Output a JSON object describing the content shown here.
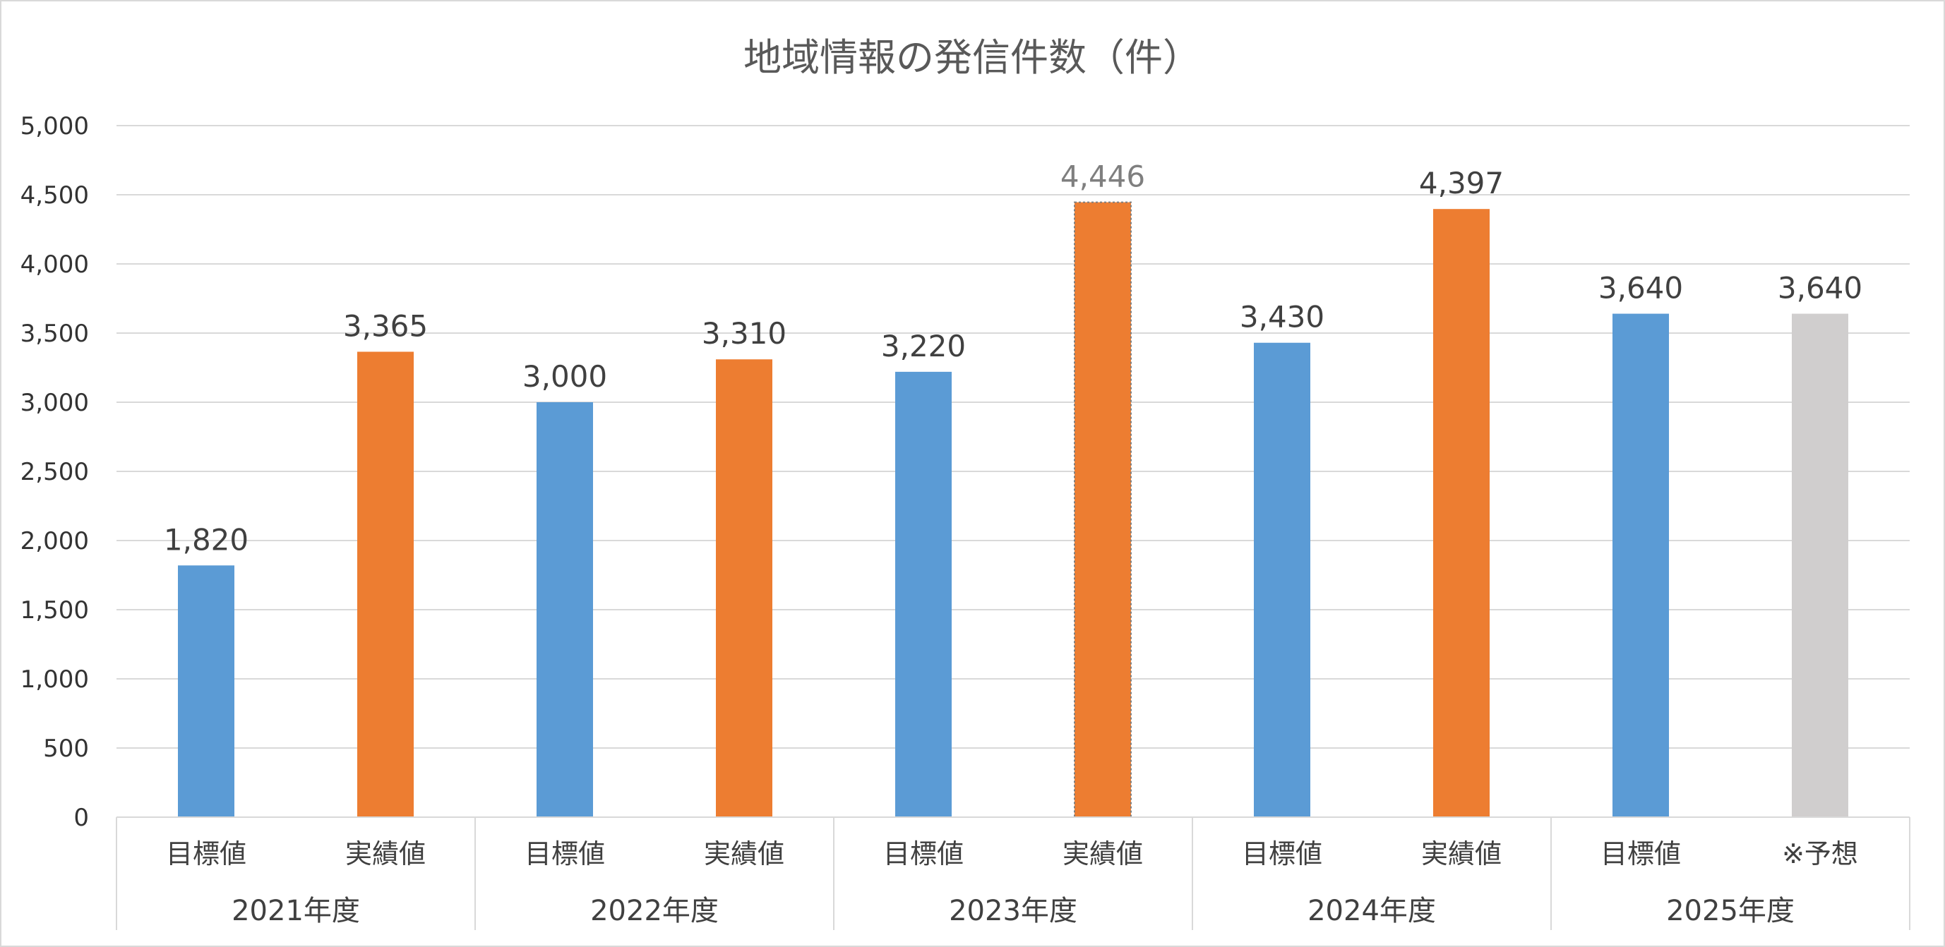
{
  "chart_data": {
    "type": "bar",
    "title": "地域情報の発信件数（件）",
    "ylim": [
      0,
      5000
    ],
    "y_ticks": [
      "0",
      "500",
      "1,000",
      "1,500",
      "2,000",
      "2,500",
      "3,000",
      "3,500",
      "4,000",
      "4,500",
      "5,000"
    ],
    "grid": true,
    "groups": [
      {
        "label": "2021年度",
        "bars": [
          {
            "category": "目標値",
            "value": 1820,
            "label": "1,820",
            "color": "#5b9bd5"
          },
          {
            "category": "実績値",
            "value": 3365,
            "label": "3,365",
            "color": "#ed7d31"
          }
        ]
      },
      {
        "label": "2022年度",
        "bars": [
          {
            "category": "目標値",
            "value": 3000,
            "label": "3,000",
            "color": "#5b9bd5"
          },
          {
            "category": "実績値",
            "value": 3310,
            "label": "3,310",
            "color": "#ed7d31"
          }
        ]
      },
      {
        "label": "2023年度",
        "bars": [
          {
            "category": "目標値",
            "value": 3220,
            "label": "3,220",
            "color": "#5b9bd5"
          },
          {
            "category": "実績値",
            "value": 4446,
            "label": "4,446",
            "color": "#ed7d31",
            "highlighted": true,
            "label_color": "#7f7f7f"
          }
        ]
      },
      {
        "label": "2024年度",
        "bars": [
          {
            "category": "目標値",
            "value": 3430,
            "label": "3,430",
            "color": "#5b9bd5"
          },
          {
            "category": "実績値",
            "value": 4397,
            "label": "4,397",
            "color": "#ed7d31"
          }
        ]
      },
      {
        "label": "2025年度",
        "bars": [
          {
            "category": "目標値",
            "value": 3640,
            "label": "3,640",
            "color": "#5b9bd5"
          },
          {
            "category": "※予想",
            "value": 3640,
            "label": "3,640",
            "color": "#d0cece"
          }
        ]
      }
    ]
  }
}
